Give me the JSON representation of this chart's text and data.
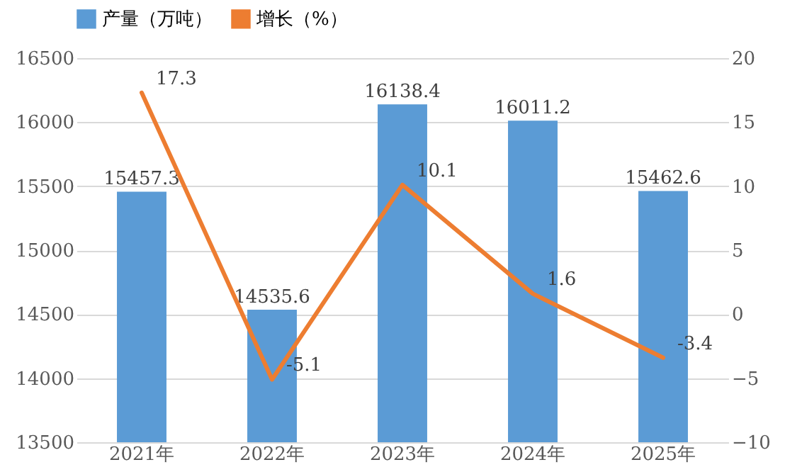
{
  "chart_data": {
    "type": "bar",
    "categories": [
      "2021年",
      "2022年",
      "2023年",
      "2024年",
      "2025年"
    ],
    "series": [
      {
        "name": "产量（万吨）",
        "color": "#5b9bd5",
        "values": [
          15457.3,
          14535.6,
          16138.4,
          16011.2,
          15462.6
        ]
      },
      {
        "name": "增长（%）",
        "type": "line",
        "axis": "y2",
        "color": "#ed7d31",
        "values": [
          17.3,
          -5.1,
          10.1,
          1.6,
          -3.4
        ]
      }
    ],
    "ylim": [
      13500,
      16500
    ],
    "yticks": [
      13500,
      14000,
      14500,
      15000,
      15500,
      16000,
      16500
    ],
    "y2lim": [
      -10,
      20
    ],
    "y2ticks": [
      -10,
      -5,
      0,
      5,
      10,
      15,
      20
    ],
    "grid": "y",
    "legend": "top",
    "data_labels": true
  }
}
